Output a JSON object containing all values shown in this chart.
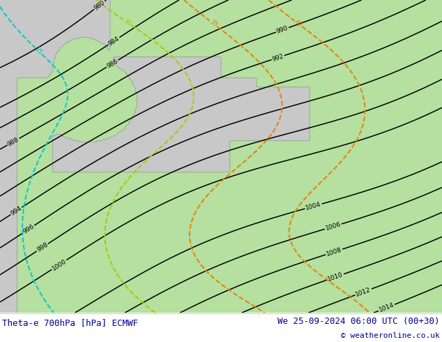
{
  "title_left": "Theta-e 700hPa [hPa] ECMWF",
  "title_right": "We 25-09-2024 06:00 UTC (00+30)",
  "copyright": "© weatheronline.co.uk",
  "bg_color": "#ffffff",
  "land_color": "#b5e0a0",
  "sea_color": "#c8c8c8",
  "pressure_color": "#000000",
  "theta_orange": "#e88000",
  "theta_yellow_green": "#a8c800",
  "theta_cyan": "#00c8c8",
  "fig_width": 6.34,
  "fig_height": 4.9,
  "dpi": 100,
  "text_color": "#00008b",
  "font_size_bottom": 9,
  "coast_color": "#999999"
}
